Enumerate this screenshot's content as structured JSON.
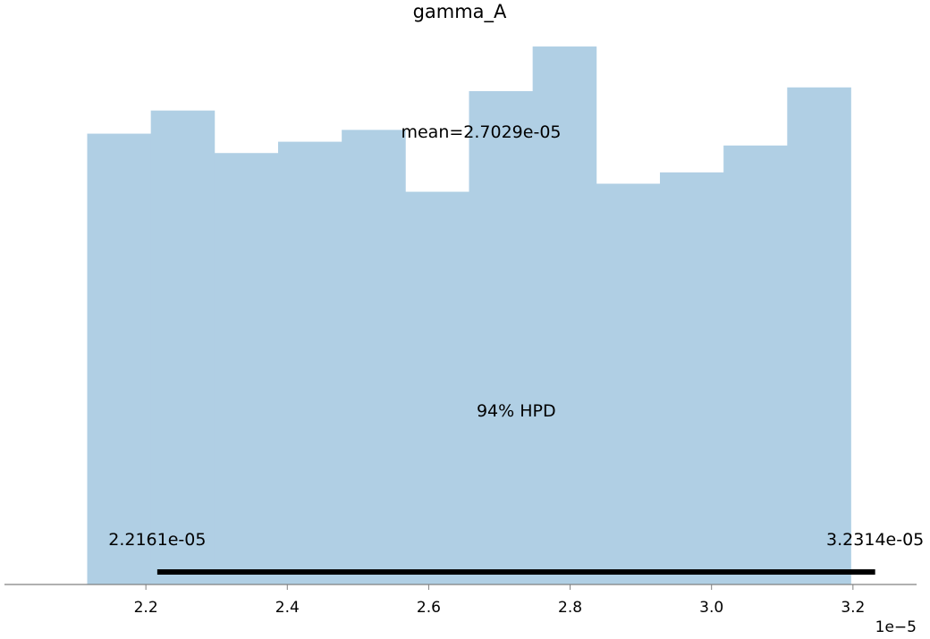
{
  "chart_data": {
    "type": "bar",
    "title": "gamma_A",
    "xlabel": "",
    "ylabel": "",
    "bin_edges": [
      2.117,
      2.207,
      2.297,
      2.387,
      2.477,
      2.567,
      2.657,
      2.747,
      2.837,
      2.927,
      3.017,
      3.107,
      3.197
    ],
    "values": [
      0.838,
      0.881,
      0.802,
      0.823,
      0.845,
      0.73,
      0.917,
      1.0,
      0.745,
      0.766,
      0.816,
      0.924
    ],
    "xlim": [
      2.0,
      3.29
    ],
    "ylim": [
      0,
      1.02
    ],
    "xticks": [
      2.2,
      2.4,
      2.6,
      2.8,
      3.0,
      3.2
    ],
    "xtick_labels": [
      "2.2",
      "2.4",
      "2.6",
      "2.8",
      "3.0",
      "3.2"
    ],
    "x_offset_label": "1e−5",
    "mean_label": "mean=2.7029e-05",
    "hpd": {
      "label": "94% HPD",
      "low": 2.2161,
      "high": 3.2314,
      "low_label": "2.2161e-05",
      "high_label": "3.2314e-05"
    },
    "grid": false,
    "colors": {
      "bars": "#b0cfe4",
      "hpd_line": "#000000",
      "axis": "#808080"
    }
  }
}
